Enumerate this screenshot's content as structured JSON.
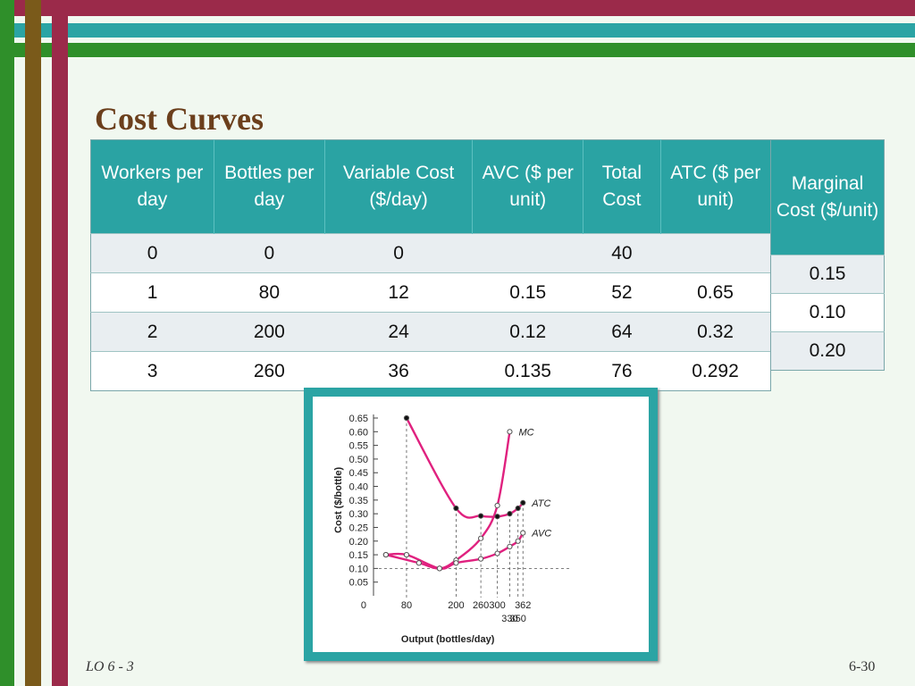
{
  "slide": {
    "title": "Cost Curves",
    "footer_left": "LO 6 - 3",
    "footer_right": "6-30"
  },
  "table": {
    "headers": [
      "Workers per day",
      "Bottles per day",
      "Variable Cost ($/day)",
      "AVC ($ per unit)",
      "Total Cost",
      "ATC ($ per unit)"
    ],
    "rows": [
      [
        "0",
        "0",
        "0",
        "",
        "40",
        ""
      ],
      [
        "1",
        "80",
        "12",
        "0.15",
        "52",
        "0.65"
      ],
      [
        "2",
        "200",
        "24",
        "0.12",
        "64",
        "0.32"
      ],
      [
        "3",
        "260",
        "36",
        "0.135",
        "76",
        "0.292"
      ]
    ],
    "mc_header": "Marginal Cost ($/unit)",
    "mc_values": [
      "0.15",
      "0.10",
      "0.20"
    ]
  },
  "colors": {
    "curve": "#e0217f",
    "header_bg": "#2aa3a3",
    "title": "#6b3f1c"
  },
  "chart_data": {
    "type": "line",
    "xlabel": "Output (bottles/day)",
    "ylabel": "Cost ($/bottle)",
    "ylim": [
      0,
      0.65
    ],
    "yticks": [
      "0.65",
      "0.60",
      "0.55",
      "0.50",
      "0.45",
      "0.40",
      "0.35",
      "0.30",
      "0.25",
      "0.20",
      "0.15",
      "0.10",
      "0.05"
    ],
    "x_origin_label": "0",
    "xticks_upper": [
      "80",
      "200",
      "260",
      "300",
      "362"
    ],
    "xticks_lower": [
      "330",
      "350"
    ],
    "series": [
      {
        "name": "MC",
        "x": [
          30,
          110,
          160,
          200,
          260,
          300,
          330
        ],
        "y": [
          0.15,
          0.12,
          0.1,
          0.13,
          0.21,
          0.33,
          0.6
        ]
      },
      {
        "name": "ATC",
        "x": [
          80,
          200,
          260,
          300,
          330,
          350,
          362
        ],
        "y": [
          0.65,
          0.32,
          0.292,
          0.29,
          0.3,
          0.32,
          0.34
        ]
      },
      {
        "name": "AVC",
        "x": [
          30,
          80,
          160,
          200,
          260,
          300,
          330,
          350,
          362
        ],
        "y": [
          0.15,
          0.15,
          0.1,
          0.12,
          0.135,
          0.155,
          0.18,
          0.2,
          0.23
        ]
      }
    ],
    "dashed_h": 0.1
  }
}
